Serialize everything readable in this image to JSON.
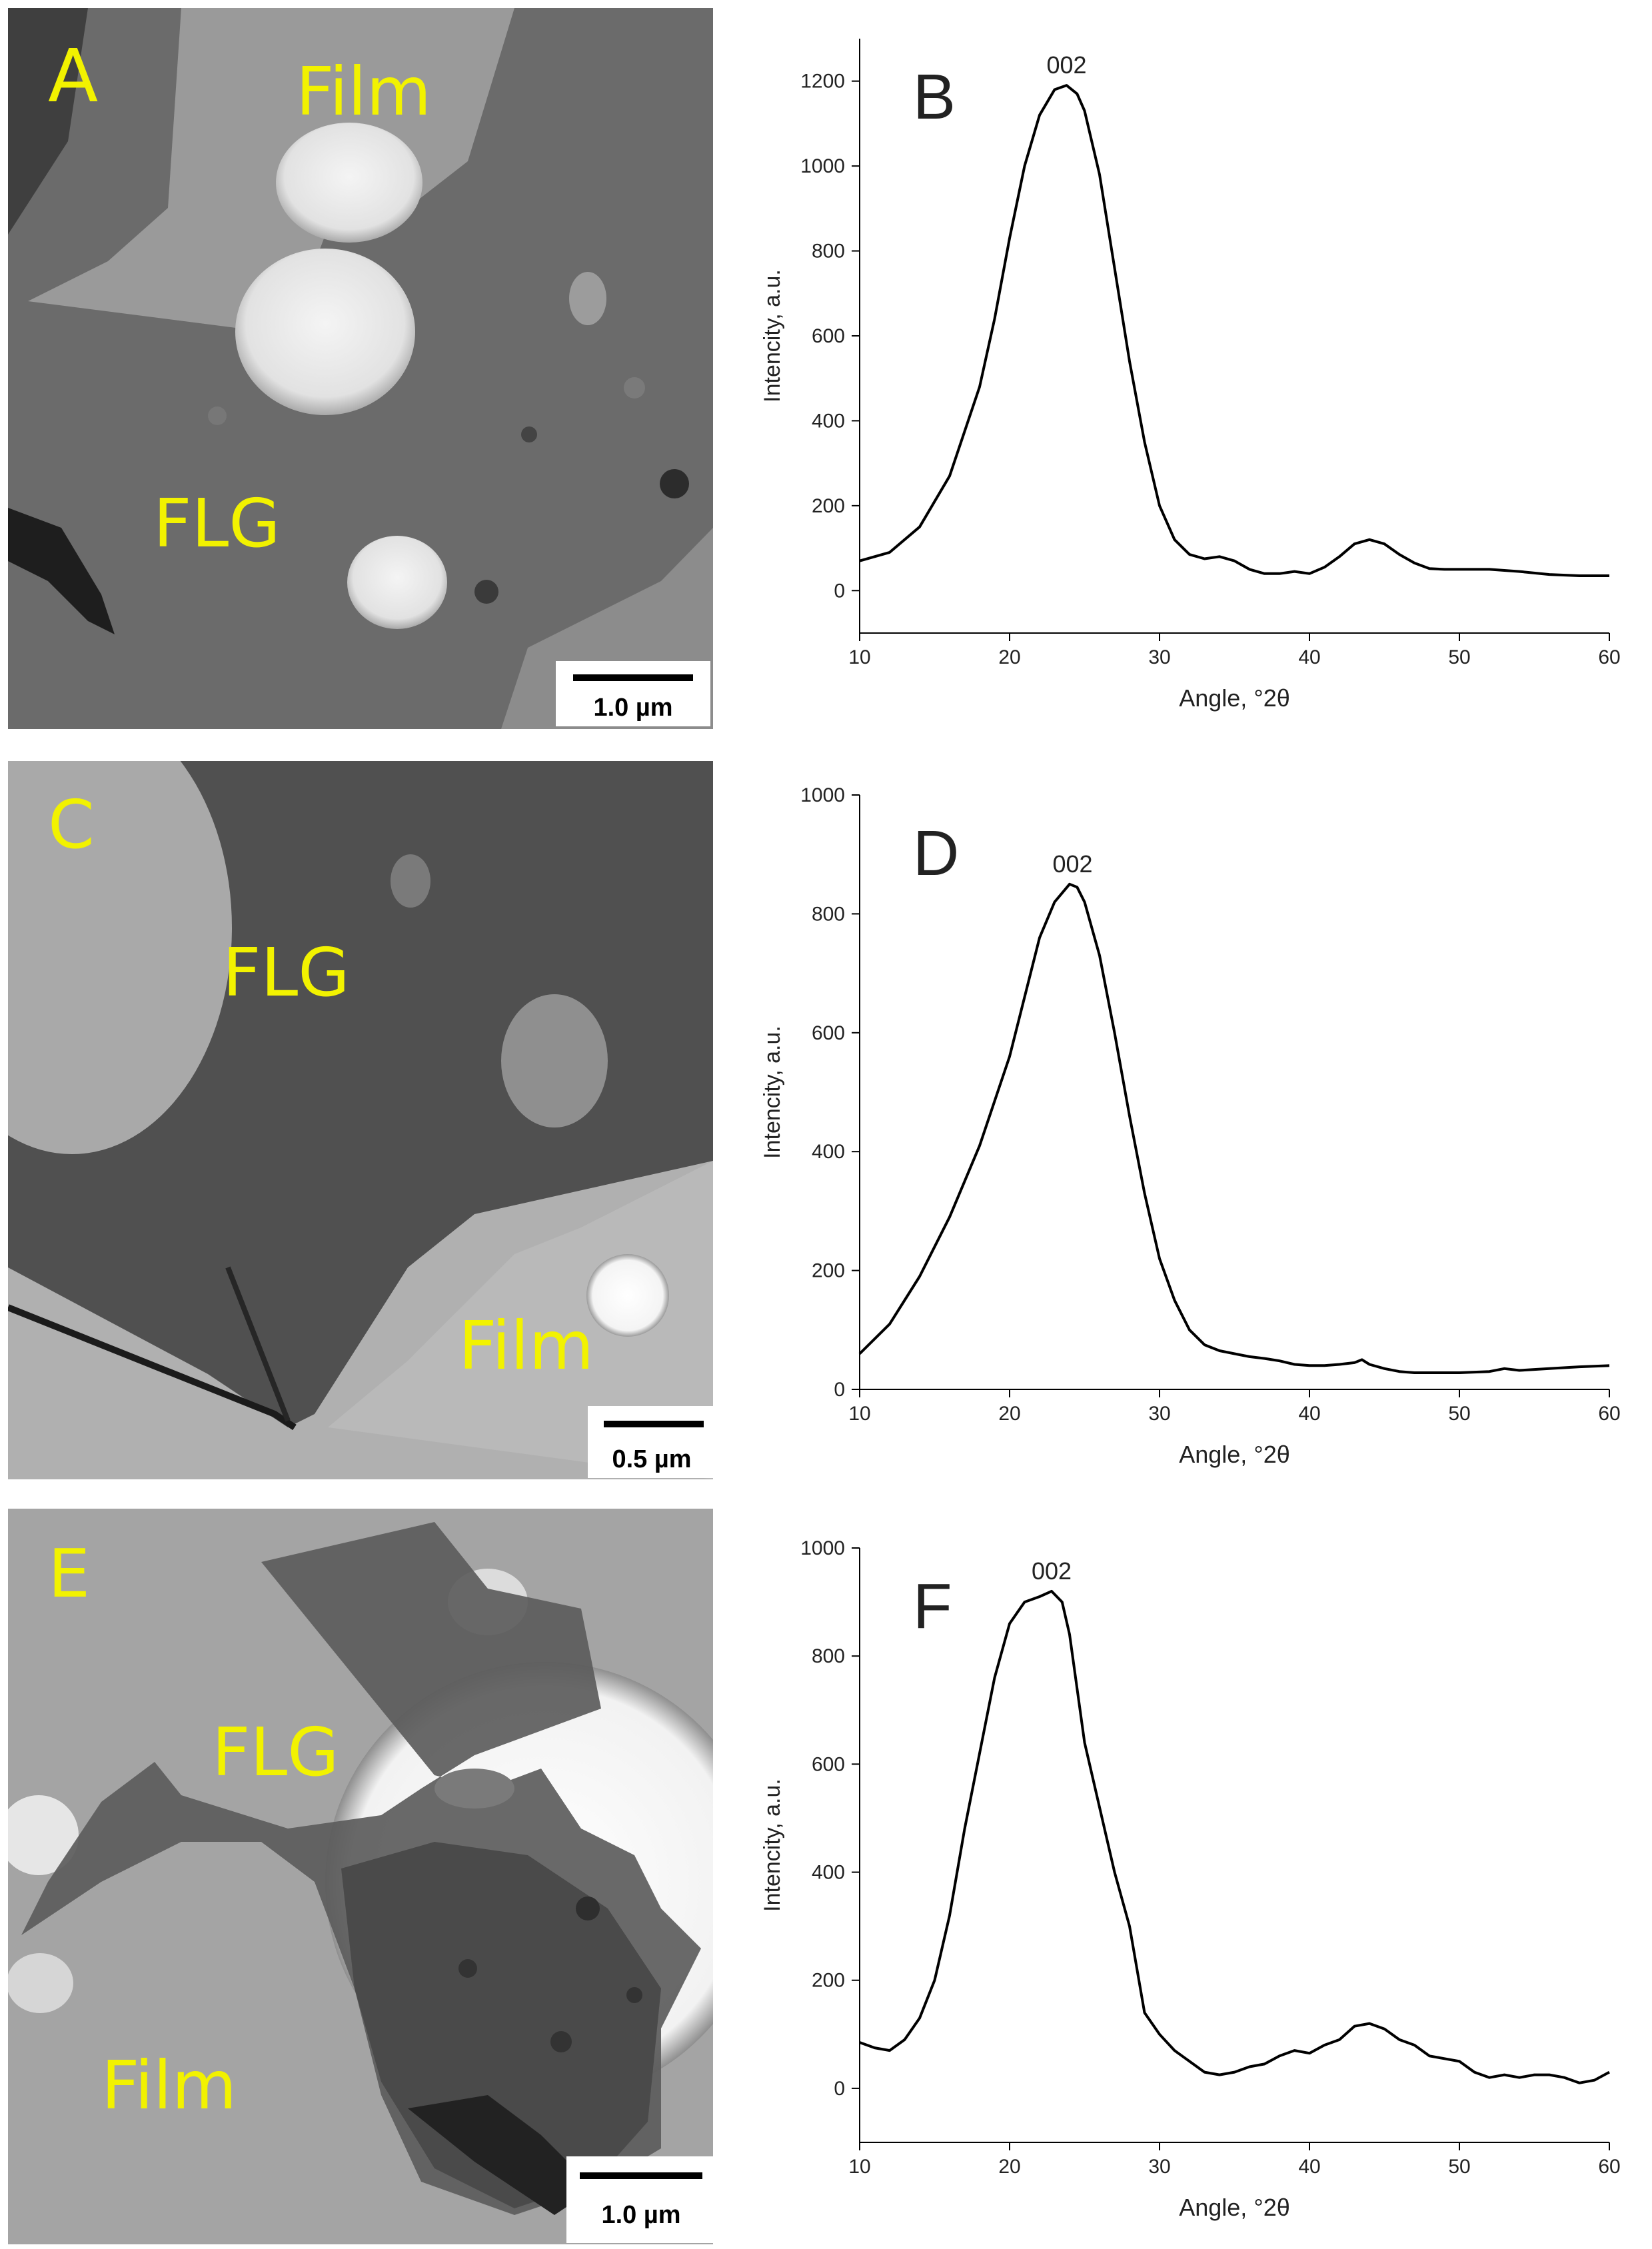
{
  "micrographs": [
    {
      "letter": "A",
      "labels": [
        "Film",
        "FLG"
      ],
      "scale_bar": "1.0 µm"
    },
    {
      "letter": "C",
      "labels": [
        "FLG",
        "Film"
      ],
      "scale_bar": "0.5 µm"
    },
    {
      "letter": "E",
      "labels": [
        "FLG",
        "Film"
      ],
      "scale_bar": "1.0 µm"
    }
  ],
  "colors": {
    "label": "#f2f200",
    "curve": "#000000"
  },
  "chart_data": [
    {
      "type": "line",
      "panel_letter": "B",
      "annotation": "002",
      "xlabel": "Angle, °2θ",
      "ylabel": "Intencity, a.u.",
      "xlim": [
        10,
        60
      ],
      "ylim": [
        -100,
        1300
      ],
      "xticks": [
        10,
        20,
        30,
        40,
        50,
        60
      ],
      "yticks": [
        0,
        200,
        400,
        600,
        800,
        1000,
        1200
      ],
      "annotation_x": 23.8,
      "annotation_y": 1190,
      "x": [
        10,
        12,
        14,
        16,
        18,
        19,
        20,
        21,
        22,
        23,
        23.8,
        24.5,
        25,
        26,
        27,
        28,
        29,
        30,
        31,
        32,
        33,
        34,
        35,
        36,
        37,
        38,
        39,
        40,
        41,
        42,
        43,
        44,
        45,
        46,
        47,
        48,
        49,
        50,
        52,
        54,
        56,
        58,
        60
      ],
      "y": [
        70,
        90,
        150,
        270,
        480,
        640,
        830,
        1000,
        1120,
        1180,
        1190,
        1170,
        1130,
        980,
        760,
        540,
        350,
        200,
        120,
        85,
        75,
        80,
        70,
        50,
        40,
        40,
        45,
        40,
        55,
        80,
        110,
        120,
        110,
        85,
        65,
        52,
        50,
        50,
        50,
        45,
        38,
        35,
        35
      ]
    },
    {
      "type": "line",
      "panel_letter": "D",
      "annotation": "002",
      "xlabel": "Angle, °2θ",
      "ylabel": "Intencity, a.u.",
      "xlim": [
        10,
        60
      ],
      "ylim": [
        0,
        1000
      ],
      "xticks": [
        10,
        20,
        30,
        40,
        50,
        60
      ],
      "yticks": [
        0,
        200,
        400,
        600,
        800,
        1000
      ],
      "annotation_x": 24.2,
      "annotation_y": 850,
      "x": [
        10,
        12,
        14,
        16,
        18,
        20,
        21,
        22,
        23,
        24,
        24.5,
        25,
        26,
        27,
        28,
        29,
        30,
        31,
        32,
        33,
        34,
        35,
        36,
        37,
        38,
        39,
        40,
        41,
        42,
        43,
        43.5,
        44,
        45,
        46,
        47,
        48,
        50,
        52,
        53,
        54,
        56,
        58,
        60
      ],
      "y": [
        60,
        110,
        190,
        290,
        410,
        560,
        660,
        760,
        820,
        850,
        845,
        820,
        730,
        600,
        460,
        330,
        220,
        150,
        100,
        75,
        65,
        60,
        55,
        52,
        48,
        42,
        40,
        40,
        42,
        45,
        50,
        42,
        35,
        30,
        28,
        28,
        28,
        30,
        35,
        32,
        35,
        38,
        40
      ]
    },
    {
      "type": "line",
      "panel_letter": "F",
      "annotation": "002",
      "xlabel": "Angle, °2θ",
      "ylabel": "Intencity, a.u.",
      "xlim": [
        10,
        60
      ],
      "ylim": [
        -100,
        1000
      ],
      "xticks": [
        10,
        20,
        30,
        40,
        50,
        60
      ],
      "yticks": [
        0,
        200,
        400,
        600,
        800,
        1000
      ],
      "annotation_x": 22.8,
      "annotation_y": 920,
      "x": [
        10,
        11,
        12,
        13,
        14,
        15,
        16,
        17,
        18,
        19,
        20,
        21,
        22,
        22.8,
        23.5,
        24,
        25,
        26,
        27,
        28,
        29,
        30,
        31,
        32,
        33,
        34,
        35,
        36,
        37,
        38,
        39,
        40,
        41,
        42,
        43,
        44,
        45,
        46,
        47,
        48,
        49,
        50,
        51,
        52,
        53,
        54,
        55,
        56,
        57,
        58,
        59,
        60
      ],
      "y": [
        85,
        75,
        70,
        90,
        130,
        200,
        320,
        480,
        620,
        760,
        860,
        900,
        910,
        920,
        900,
        840,
        640,
        520,
        400,
        300,
        140,
        100,
        70,
        50,
        30,
        25,
        30,
        40,
        45,
        60,
        70,
        65,
        80,
        90,
        115,
        120,
        110,
        90,
        80,
        60,
        55,
        50,
        30,
        20,
        25,
        20,
        25,
        25,
        20,
        10,
        15,
        30
      ]
    }
  ]
}
